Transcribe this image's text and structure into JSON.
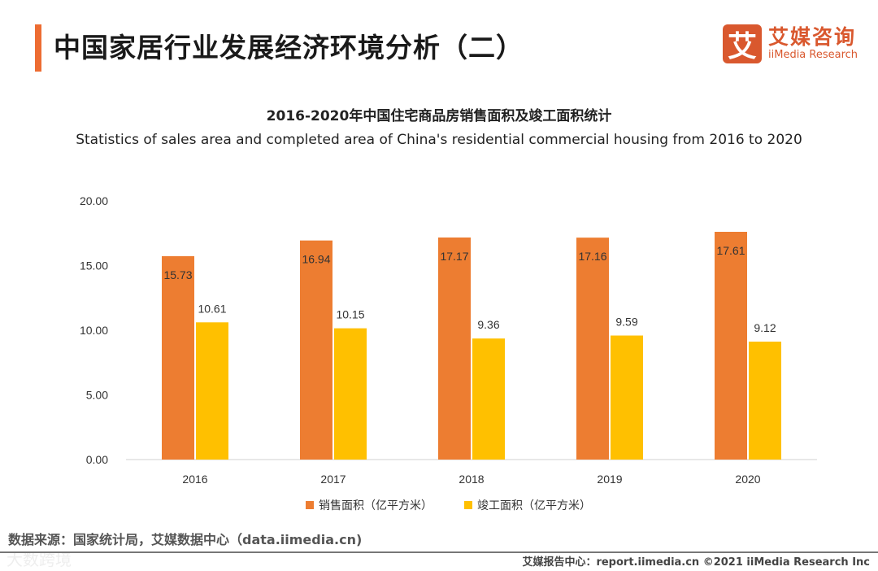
{
  "header": {
    "title": "中国家居行业发展经济环境分析（二）"
  },
  "logo": {
    "mark": "艾",
    "cn": "艾媒咨询",
    "en": "iiMedia Research"
  },
  "chart_data": {
    "type": "bar",
    "title": "2016-2020年中国住宅商品房销售面积及竣工面积统计",
    "subtitle": "Statistics of sales area and completed area of China's residential commercial housing from 2016 to 2020",
    "categories": [
      "2016",
      "2017",
      "2018",
      "2019",
      "2020"
    ],
    "series": [
      {
        "name": "销售面积（亿平方米）",
        "color": "#ed7d31",
        "values": [
          15.73,
          16.94,
          17.17,
          17.16,
          17.61
        ],
        "labels": [
          "15.73",
          "16.94",
          "17.17",
          "17.16",
          "17.61"
        ]
      },
      {
        "name": "竣工面积（亿平方米）",
        "color": "#ffc000",
        "values": [
          10.61,
          10.15,
          9.36,
          9.59,
          9.12
        ],
        "labels": [
          "10.61",
          "10.15",
          "9.36",
          "9.59",
          "9.12"
        ]
      }
    ],
    "ylim": [
      0,
      20
    ],
    "yticks": [
      "0.00",
      "5.00",
      "10.00",
      "15.00",
      "20.00"
    ],
    "legend": "bottom"
  },
  "footer": {
    "source": "数据来源：国家统计局，艾媒数据中心（data.iimedia.cn)",
    "right": "艾媒报告中心：report.iimedia.cn   ©2021  iiMedia Research  Inc",
    "watermark": "大数跨境"
  }
}
